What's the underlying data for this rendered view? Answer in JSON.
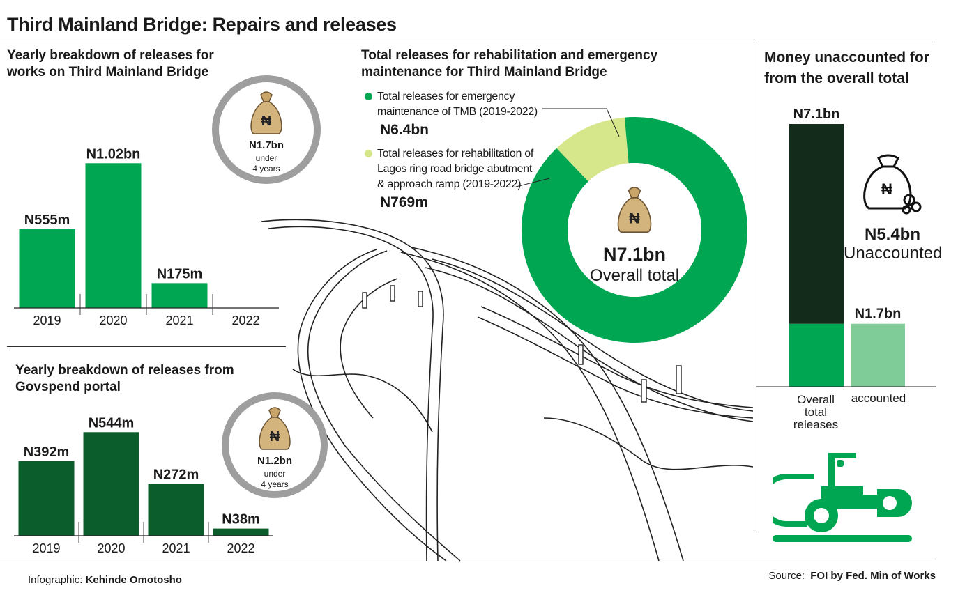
{
  "title": "Third Mainland Bridge: Repairs and releases",
  "colors": {
    "green": "#00a651",
    "dark_green": "#0b5e2c",
    "darkest": "#122b1b",
    "light_green": "#d6e68a",
    "accounted": "#80cc98",
    "badge_border": "#9e9e9e"
  },
  "panel_releases": {
    "title_line1": "Yearly breakdown of releases for",
    "title_line2": "works on Third Mainland Bridge",
    "badge": {
      "amount": "N1.7bn",
      "line2": "under",
      "line3": "4 years",
      "icon": "naira-money-bag-icon"
    }
  },
  "panel_govspend": {
    "title_line1": "Yearly breakdown of releases from",
    "title_line2": "Govspend portal",
    "badge": {
      "amount": "N1.2bn",
      "line2": "under",
      "line3": "4 years",
      "icon": "naira-money-bag-icon"
    }
  },
  "panel_total": {
    "title_line1": "Total releases for rehabilitation and emergency",
    "title_line2": "maintenance for Third Mainland Bridge",
    "legend": [
      {
        "line1": "Total releases for emergency",
        "line2": "maintenance of TMB (2019-2022)",
        "line3": "",
        "value": "N6.4bn"
      },
      {
        "line1": "Total releases for rehabilitation of",
        "line2": "Lagos ring road bridge abutment",
        "line3": "& approach ramp (2019-2022)",
        "value": "N769m"
      }
    ],
    "center_value": "N7.1bn",
    "center_label": "Overall total",
    "center_icon": "naira-money-bag-icon"
  },
  "panel_unaccounted": {
    "title_line1": "Money unaccounted for",
    "title_line2": "from the overall total",
    "total_label": "N7.1bn",
    "accounted_label": "N1.7bn",
    "unaccounted_value": "N5.4bn",
    "unaccounted_label": "Unaccounted",
    "x_label_1_line1": "Overall",
    "x_label_1_line2": "total",
    "x_label_1_line3": "releases",
    "x_label_2": "accounted",
    "icons": [
      "money-bag-coins-icon",
      "road-roller-icon"
    ]
  },
  "chart_data": [
    {
      "type": "bar",
      "title": "Yearly breakdown of releases for works on Third Mainland Bridge",
      "categories": [
        "2019",
        "2020",
        "2021",
        "2022"
      ],
      "values": [
        555,
        1020,
        175,
        0
      ],
      "value_labels": [
        "N555m",
        "N1.02bn",
        "N175m",
        ""
      ],
      "unit": "N million",
      "ylim": [
        0,
        1100
      ]
    },
    {
      "type": "bar",
      "title": "Yearly breakdown of releases from Govspend portal",
      "categories": [
        "2019",
        "2020",
        "2021",
        "2022"
      ],
      "values": [
        392,
        544,
        272,
        38
      ],
      "value_labels": [
        "N392m",
        "N544m",
        "N272m",
        "N38m"
      ],
      "unit": "N million",
      "ylim": [
        0,
        600
      ]
    },
    {
      "type": "pie",
      "title": "Total releases for rehabilitation and emergency maintenance for Third Mainland Bridge",
      "categories": [
        "Total releases for emergency maintenance of TMB (2019-2022)",
        "Total releases for rehabilitation of Lagos ring road bridge abutment & approach ramp (2019-2022)"
      ],
      "values": [
        6.4,
        0.769
      ],
      "value_labels": [
        "N6.4bn",
        "N769m"
      ],
      "unit": "N billion"
    },
    {
      "type": "bar",
      "title": "Money unaccounted for from the overall total",
      "categories": [
        "Overall total releases",
        "accounted"
      ],
      "series": [
        {
          "name": "accounted",
          "values": [
            1.7,
            1.7
          ]
        },
        {
          "name": "Unaccounted",
          "values": [
            5.4,
            0
          ]
        }
      ],
      "value_labels": [
        "N7.1bn",
        "N1.7bn"
      ],
      "unit": "N billion",
      "ylim": [
        0,
        7.1
      ]
    }
  ],
  "footer": {
    "credit_prefix": "Infographic:",
    "credit_name": "Kehinde Omotosho",
    "source_prefix": "Source:",
    "source_name": "FOI by Fed. Min of Works"
  }
}
